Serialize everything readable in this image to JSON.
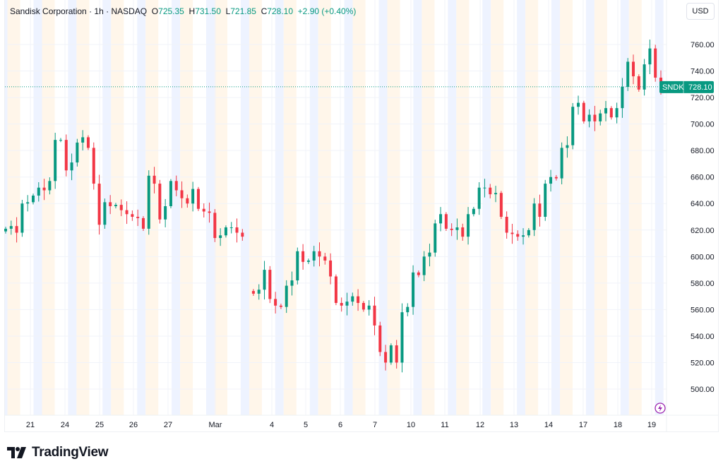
{
  "header": {
    "symbol_name": "Sandisk Corporation",
    "interval": "1h",
    "exchange": "NASDAQ",
    "open_label": "O",
    "open": "725.35",
    "high_label": "H",
    "high": "731.50",
    "low_label": "L",
    "low": "721.85",
    "close_label": "C",
    "close": "728.10",
    "change": "+2.90 (+0.40%)"
  },
  "currency_button": "USD",
  "price_tag": {
    "ticker": "SNDK",
    "price": "728.10"
  },
  "brand": "TradingView",
  "colors": {
    "up": "#089981",
    "down": "#f23645",
    "premarket": "#eef3ff",
    "postmarket": "#fff6ea",
    "alert": "#9c27b0"
  },
  "icons": [
    "tradingview-logo-icon",
    "lightning-alert-icon"
  ],
  "chart_data": {
    "type": "candlestick",
    "title": "",
    "xlabel": "",
    "ylabel": "",
    "ylim": [
      485,
      770
    ],
    "y_ticks": [
      "500.00",
      "520.00",
      "540.00",
      "560.00",
      "580.00",
      "600.00",
      "620.00",
      "640.00",
      "660.00",
      "680.00",
      "700.00",
      "720.00",
      "740.00",
      "760.00"
    ],
    "x_ticks": [
      "21",
      "24",
      "25",
      "26",
      "27",
      "Mar",
      "4",
      "5",
      "6",
      "7",
      "10",
      "11",
      "12",
      "13",
      "14",
      "17",
      "18",
      "19"
    ],
    "grid": true,
    "last_price": 728.1,
    "close": [
      621,
      623,
      618,
      640,
      641,
      646,
      652,
      650,
      657,
      688,
      688,
      665,
      671,
      686,
      690,
      682,
      655,
      624,
      641,
      638,
      639,
      635,
      632,
      630,
      629,
      621,
      661,
      655,
      628,
      638,
      657,
      650,
      644,
      640,
      651,
      636,
      634,
      633,
      614,
      616,
      622,
      622,
      618,
      615,
      null,
      572,
      575,
      590,
      568,
      563,
      562,
      578,
      582,
      604,
      596,
      597,
      604,
      600,
      597,
      585,
      565,
      563,
      566,
      570,
      565,
      560,
      563,
      548,
      528,
      520,
      533,
      520,
      558,
      562,
      588,
      586,
      600,
      603,
      625,
      632,
      621,
      620,
      622,
      615,
      632,
      636,
      652,
      652,
      647,
      648,
      630,
      618,
      617,
      615,
      616,
      620,
      640,
      630,
      655,
      660,
      659,
      682,
      684,
      713,
      716,
      702,
      707,
      702,
      708,
      712,
      705,
      712,
      728,
      747,
      736,
      726,
      745,
      757,
      735,
      728.1
    ]
  }
}
